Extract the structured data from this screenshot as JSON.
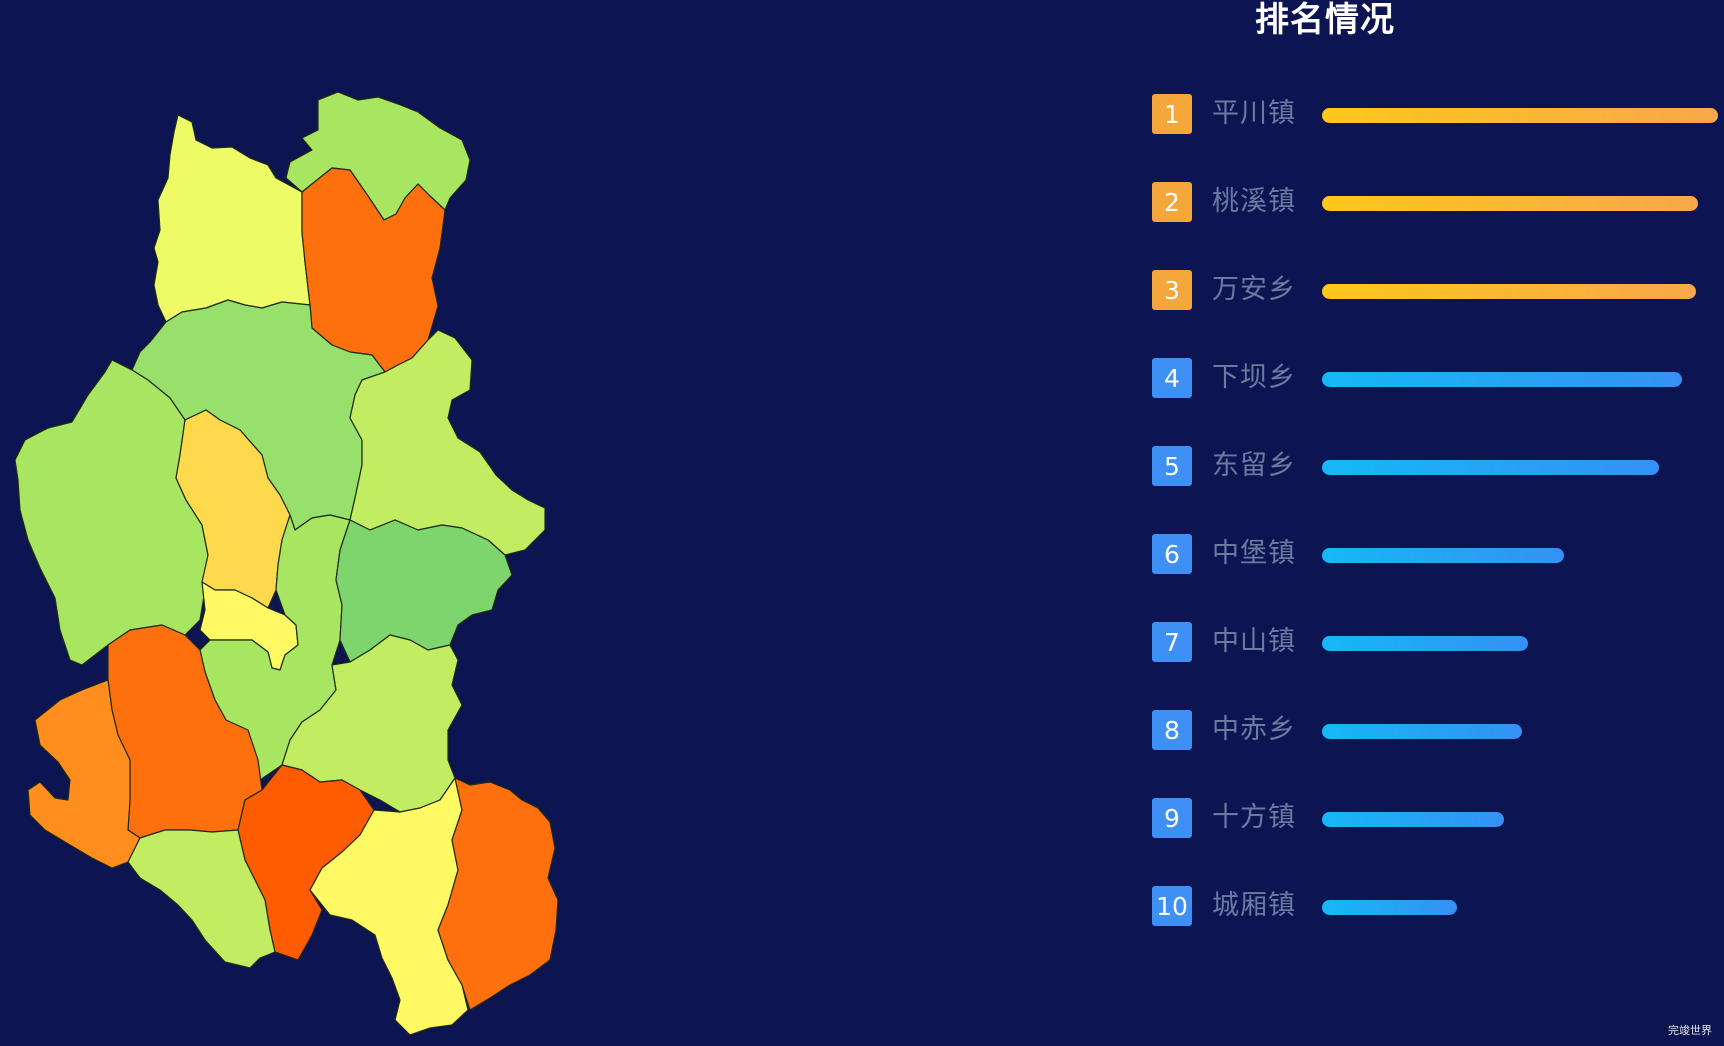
{
  "chart_data": {
    "type": "bar",
    "orientation": "horizontal",
    "title": "排名情况",
    "categories": [
      "平川镇",
      "桃溪镇",
      "万安乡",
      "下坝乡",
      "东留乡",
      "中堡镇",
      "中山镇",
      "中赤乡",
      "十方镇",
      "城厢镇"
    ],
    "ranks": [
      "1",
      "2",
      "3",
      "4",
      "5",
      "6",
      "7",
      "8",
      "9",
      "10"
    ],
    "values": [
      100,
      95,
      94.5,
      91,
      85,
      61,
      52,
      50.5,
      46,
      34
    ],
    "xlim": [
      0,
      100
    ],
    "grid": false,
    "top_colors": {
      "badge": "#f5a73b",
      "bar_start": "#fcc81b",
      "bar_end": "#f9a84a"
    },
    "other_colors": {
      "badge": "#3e90f5",
      "bar_start": "#15b9f5",
      "bar_end": "#3590f5"
    }
  },
  "map": {
    "palette": [
      "#ff5b00",
      "#fe6f0e",
      "#ff8e1e",
      "#fdd94b",
      "#fffa63",
      "#eef866",
      "#c2ec62",
      "#a8e561",
      "#96e06b",
      "#7ed46d"
    ]
  },
  "watermark": "完竣世界"
}
